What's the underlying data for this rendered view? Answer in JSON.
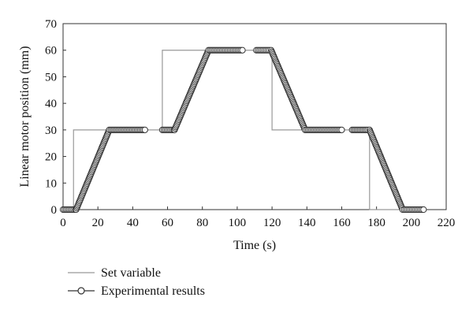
{
  "chart_data": {
    "type": "line",
    "xlabel": "Time (s)",
    "ylabel": "Linear motor position (mm)",
    "xlim": [
      0,
      220
    ],
    "ylim": [
      0,
      70
    ],
    "xticks": [
      "0",
      "20",
      "40",
      "60",
      "80",
      "100",
      "120",
      "140",
      "160",
      "180",
      "200",
      "220"
    ],
    "yticks": [
      "0",
      "10",
      "20",
      "30",
      "40",
      "50",
      "60",
      "70"
    ],
    "grid": false,
    "legend_position": "bottom-left",
    "series": [
      {
        "name": "Set variable",
        "color": "#999999",
        "marker": "none",
        "x": [
          0,
          6,
          6,
          47,
          57,
          57,
          63,
          63,
          104,
          111,
          111,
          120,
          120,
          160,
          166,
          166,
          176,
          176,
          207
        ],
        "y": [
          0,
          0,
          30,
          30,
          30,
          60,
          60,
          60,
          60,
          60,
          60,
          60,
          30,
          30,
          30,
          30,
          30,
          0,
          0
        ]
      },
      {
        "name": "Experimental results",
        "color": "#333333",
        "marker": "open-circle",
        "segments": [
          {
            "x": [
              0,
              7,
              7.5,
              26.5,
              47
            ],
            "y": [
              0,
              0,
              0,
              30,
              30
            ]
          },
          {
            "x": [
              57,
              63.5,
              64,
              83.5,
              103
            ],
            "y": [
              30,
              30,
              30,
              60,
              60
            ]
          },
          {
            "x": [
              111,
              118.5,
              119.5,
              139,
              160
            ],
            "y": [
              60,
              60,
              60,
              30,
              30
            ]
          },
          {
            "x": [
              166,
              175,
              176,
              195,
              207
            ],
            "y": [
              30,
              30,
              30,
              0,
              0
            ]
          }
        ]
      }
    ]
  }
}
